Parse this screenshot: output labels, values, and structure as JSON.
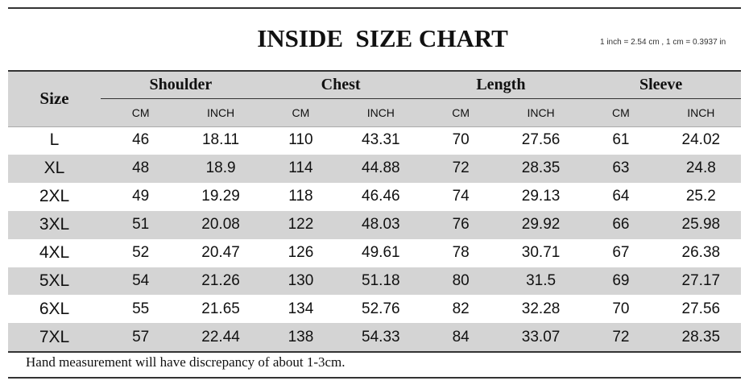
{
  "title": "INSIDE  SIZE CHART",
  "note": "1 inch = 2.54 cm , 1 cm = 0.3937 in",
  "table": {
    "size_header": "Size",
    "groups": [
      "Shoulder",
      "Chest",
      "Length",
      "Sleeve"
    ],
    "units": [
      "CM",
      "INCH",
      "CM",
      "INCH",
      "CM",
      "INCH",
      "CM",
      "INCH"
    ],
    "rows": [
      [
        "L",
        46,
        18.11,
        110,
        43.31,
        70,
        27.56,
        61,
        24.02
      ],
      [
        "XL",
        48,
        18.9,
        114,
        44.88,
        72,
        28.35,
        63,
        24.8
      ],
      [
        "2XL",
        49,
        19.29,
        118,
        46.46,
        74,
        29.13,
        64,
        25.2
      ],
      [
        "3XL",
        51,
        20.08,
        122,
        48.03,
        76,
        29.92,
        66,
        25.98
      ],
      [
        "4XL",
        52,
        20.47,
        126,
        49.61,
        78,
        30.71,
        67,
        26.38
      ],
      [
        "5XL",
        54,
        21.26,
        130,
        51.18,
        80,
        31.5,
        69,
        27.17
      ],
      [
        "6XL",
        55,
        21.65,
        134,
        52.76,
        82,
        32.28,
        70,
        27.56
      ],
      [
        "7XL",
        57,
        22.44,
        138,
        54.33,
        84,
        33.07,
        72,
        28.35
      ]
    ]
  },
  "footer": "Hand measurement will have discrepancy of about 1-3cm."
}
